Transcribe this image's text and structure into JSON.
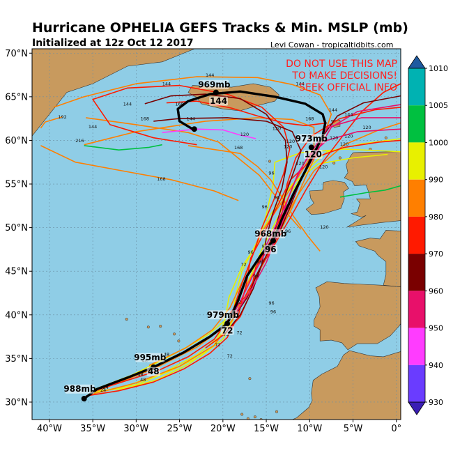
{
  "title": "Hurricane OPHELIA GEFS Tracks & Min. MSLP (mb)",
  "subtitle": "Initialized at 12z Oct 12 2017",
  "credit": "Levi Cowan - tropicaltidbits.com",
  "warning": [
    "DO NOT USE THIS MAP",
    "TO MAKE DECISIONS!",
    "SEEK OFFICIAL INFO"
  ],
  "map": {
    "lon_range": [
      -42,
      0.5
    ],
    "lat_range": [
      28,
      70.5
    ],
    "lon_ticks": [
      "40°W",
      "35°W",
      "30°W",
      "25°W",
      "20°W",
      "15°W",
      "10°W",
      "5°W",
      "0°"
    ],
    "lat_ticks": [
      "70°N",
      "65°N",
      "60°N",
      "55°N",
      "50°N",
      "45°N",
      "40°N",
      "35°N",
      "30°N"
    ],
    "ocean_color": "#8fcde6",
    "land_color": "#c89a5e"
  },
  "colorbar": {
    "labels": [
      "1010",
      "1005",
      "1000",
      "990",
      "980",
      "970",
      "960",
      "950",
      "940",
      "930"
    ],
    "colors": [
      "#1e5aa0",
      "#00b2b2",
      "#00c040",
      "#e8f000",
      "#ff7f00",
      "#ff1a00",
      "#7a0000",
      "#e8106a",
      "#ff3cff",
      "#6a3cff",
      "#3a1eb4"
    ]
  },
  "mean_track": {
    "points": [
      [
        -36.0,
        30.4
      ],
      [
        -34.5,
        31.5
      ],
      [
        -31,
        32.8
      ],
      [
        -28,
        34.0
      ],
      [
        -24.5,
        35.7
      ],
      [
        -21.5,
        37.5
      ],
      [
        -19.5,
        39.0
      ],
      [
        -18.3,
        41.5
      ],
      [
        -17.2,
        44.5
      ],
      [
        -15.5,
        47.0
      ],
      [
        -14.2,
        48.5
      ],
      [
        -13.2,
        51.0
      ],
      [
        -11.8,
        54.0
      ],
      [
        -10.5,
        56.5
      ],
      [
        -9.5,
        58.5
      ],
      [
        -8.5,
        60.5
      ],
      [
        -8.2,
        62.0
      ],
      [
        -8.5,
        63.0
      ],
      [
        -10.5,
        64.2
      ],
      [
        -14,
        65.0
      ],
      [
        -18,
        65.6
      ],
      [
        -21.5,
        65.3
      ],
      [
        -24,
        64.5
      ],
      [
        -25.2,
        63.6
      ],
      [
        -25.0,
        62.2
      ],
      [
        -23.5,
        61.3
      ]
    ],
    "labels": [
      {
        "text": "988mb",
        "lon": -36.5,
        "lat": 31.3
      },
      {
        "text": "995mb",
        "lon": -28.4,
        "lat": 34.9
      },
      {
        "text": "48",
        "lon": -28,
        "lat": 33.3
      },
      {
        "text": "979mb",
        "lon": -20.0,
        "lat": 39.8
      },
      {
        "text": "72",
        "lon": -19.5,
        "lat": 38.0
      },
      {
        "text": "968mb",
        "lon": -14.5,
        "lat": 49.1
      },
      {
        "text": "96",
        "lon": -14.5,
        "lat": 47.3
      },
      {
        "text": "973mb",
        "lon": -9.8,
        "lat": 60.0
      },
      {
        "text": "120",
        "lon": -9.6,
        "lat": 58.2
      },
      {
        "text": "969mb",
        "lon": -21.0,
        "lat": 66.2
      },
      {
        "text": "144",
        "lon": -20.5,
        "lat": 64.3
      }
    ]
  },
  "member_hour_labels": [
    "24",
    "48",
    "72",
    "96",
    "120",
    "144",
    "168",
    "192",
    "216"
  ]
}
